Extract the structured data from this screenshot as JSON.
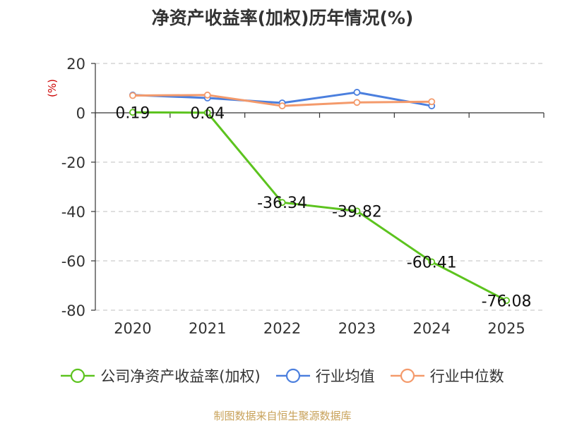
{
  "chart_data": {
    "type": "line",
    "title": "净资产收益率(加权)历年情况(%)",
    "ylabel": "(%)",
    "xlabel": "",
    "categories": [
      "2020",
      "2021",
      "2022",
      "2023",
      "2024",
      "2025"
    ],
    "ylim": [
      -80,
      20
    ],
    "yticks": [
      20,
      0,
      -20,
      -40,
      -60,
      -80
    ],
    "grid": true,
    "legend_position": "bottom",
    "series": [
      {
        "name": "公司净资产收益率(加权)",
        "color": "#5cc31e",
        "values": [
          0.19,
          0.04,
          -36.34,
          -39.82,
          -60.41,
          -76.08
        ],
        "labels": [
          "0.19",
          "0.04",
          "-36.34",
          "-39.82",
          "-60.41",
          "-76.08"
        ]
      },
      {
        "name": "行业均值",
        "color": "#4b7fde",
        "values": [
          7.2,
          6.0,
          4.0,
          8.3,
          2.8,
          null
        ]
      },
      {
        "name": "行业中位数",
        "color": "#f49a6b",
        "values": [
          7.0,
          7.2,
          2.8,
          4.2,
          4.5,
          null
        ]
      }
    ]
  },
  "source_note": "制图数据来自恒生聚源数据库",
  "ylabel_color": "#cc0000"
}
